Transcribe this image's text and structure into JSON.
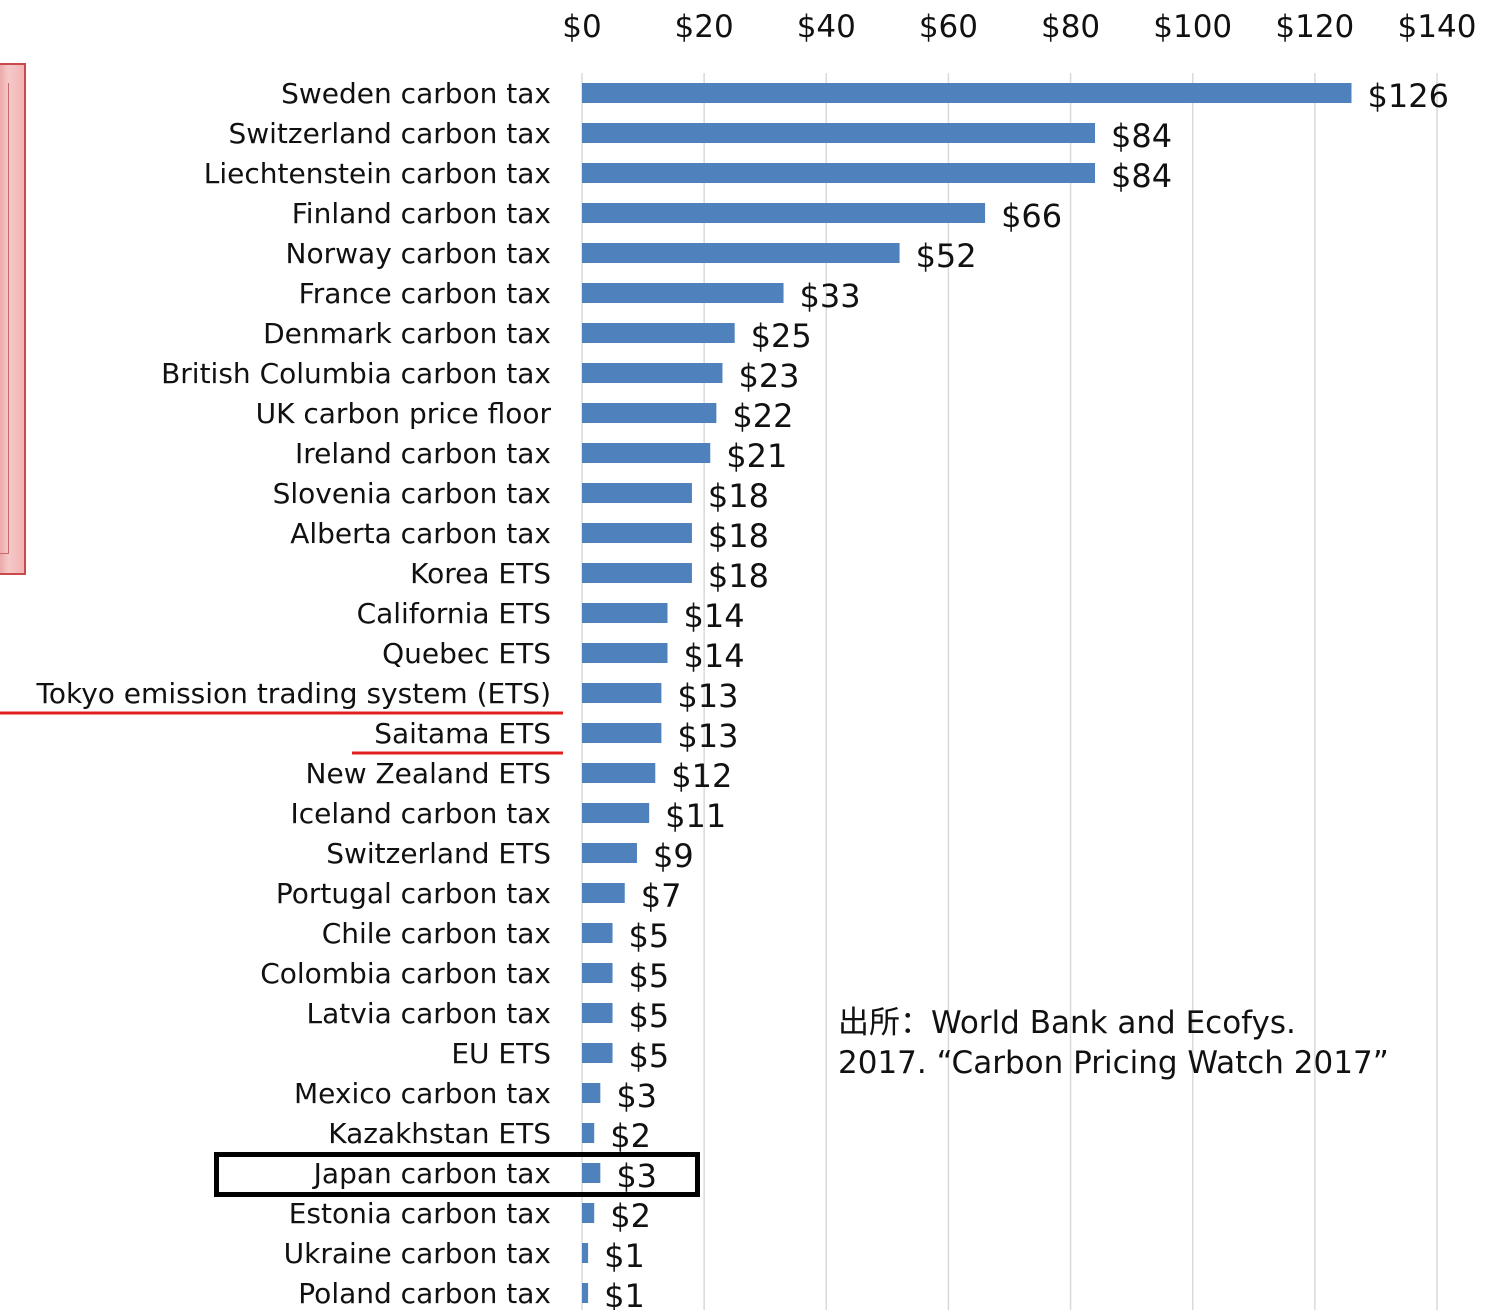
{
  "chart_data": {
    "type": "bar",
    "orientation": "horizontal",
    "categories": [
      "Sweden carbon tax",
      "Switzerland carbon tax",
      "Liechtenstein carbon tax",
      "Finland carbon tax",
      "Norway carbon tax",
      "France carbon tax",
      "Denmark carbon tax",
      "British Columbia carbon tax",
      "UK carbon price floor",
      "Ireland carbon tax",
      "Slovenia carbon tax",
      "Alberta carbon tax",
      "Korea ETS",
      "California ETS",
      "Quebec ETS",
      "Tokyo emission trading system (ETS)",
      "Saitama ETS",
      "New Zealand ETS",
      "Iceland carbon tax",
      "Switzerland ETS",
      "Portugal carbon tax",
      "Chile carbon tax",
      "Colombia carbon tax",
      "Latvia carbon tax",
      "EU ETS",
      "Mexico carbon tax",
      "Kazakhstan  ETS",
      "Japan carbon tax",
      "Estonia carbon tax",
      "Ukraine carbon tax",
      "Poland carbon tax"
    ],
    "values": [
      126,
      84,
      84,
      66,
      52,
      33,
      25,
      23,
      22,
      21,
      18,
      18,
      18,
      14,
      14,
      13,
      13,
      12,
      11,
      9,
      7,
      5,
      5,
      5,
      5,
      3,
      2,
      3,
      2,
      1,
      1
    ],
    "value_labels": [
      "$126",
      "$84",
      "$84",
      "$66",
      "$52",
      "$33",
      "$25",
      "$23",
      "$22",
      "$21",
      "$18",
      "$18",
      "$18",
      "$14",
      "$14",
      "$13",
      "$13",
      "$12",
      "$11",
      "$9",
      "$7",
      "$5",
      "$5",
      "$5",
      "$5",
      "$3",
      "$2",
      "$3",
      "$2",
      "$1",
      "$1"
    ],
    "xticks": [
      "$0",
      "$20",
      "$40",
      "$60",
      "$80",
      "$100",
      "$120",
      "$140"
    ],
    "xlim": [
      0,
      140
    ],
    "axis_position": "top",
    "grid": true,
    "title": "",
    "xlabel": "",
    "ylabel": "",
    "bar_color": "#4f81bd",
    "highlight_underline": [
      "Tokyo emission trading system (ETS)",
      "Saitama ETS"
    ],
    "underline_color": "#e02020",
    "highlight_box": "Japan carbon tax"
  },
  "source": {
    "line1": "出所：World Bank and Ecofys.",
    "line2": "2017. “Carbon Pricing Watch 2017”"
  }
}
